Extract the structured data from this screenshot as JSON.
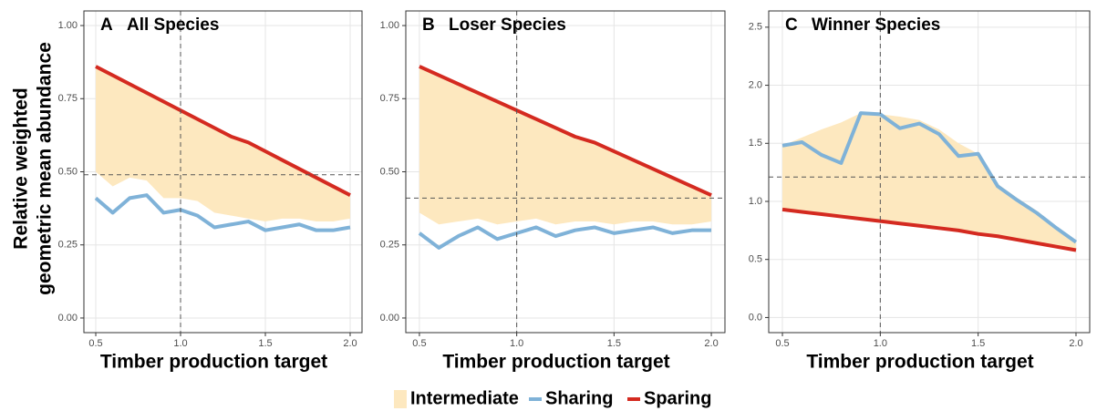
{
  "chart_data": [
    {
      "type": "line",
      "panel_label": "A",
      "title": "All Species",
      "xlabel": "Timber production target",
      "ylabel": [
        "Relative weighted",
        "geometric mean abundance"
      ],
      "x": [
        0.5,
        0.6,
        0.7,
        0.8,
        0.9,
        1.0,
        1.1,
        1.2,
        1.3,
        1.4,
        1.5,
        1.6,
        1.7,
        1.8,
        1.9,
        2.0
      ],
      "xlim": [
        0.43,
        2.07
      ],
      "xticks": [
        0.5,
        {
          "value": 1,
          "label": "1.0"
        },
        1.5,
        {
          "value": 2,
          "label": "2.0"
        }
      ],
      "ylim": [
        -0.05,
        1.05
      ],
      "yticks": [
        {
          "value": 0,
          "label": "0.00"
        },
        0.25,
        {
          "value": 0.5,
          "label": "0.50"
        },
        0.75,
        {
          "value": 1,
          "label": "1.00"
        }
      ],
      "grid": true,
      "vline": 1.0,
      "hline": 0.49,
      "series": [
        {
          "name": "Intermediate",
          "color": "#fde8bf",
          "kind": "band",
          "values": [
            0.86,
            0.83,
            0.8,
            0.77,
            0.74,
            0.71,
            0.68,
            0.65,
            0.62,
            0.6,
            0.57,
            0.54,
            0.51,
            0.48,
            0.45,
            0.42
          ],
          "lower": [
            0.5,
            0.45,
            0.48,
            0.47,
            0.41,
            0.41,
            0.4,
            0.36,
            0.35,
            0.34,
            0.33,
            0.34,
            0.34,
            0.33,
            0.33,
            0.34
          ]
        },
        {
          "name": "Sharing",
          "color": "#7fb2d8",
          "values": [
            0.41,
            0.36,
            0.41,
            0.42,
            0.36,
            0.37,
            0.35,
            0.31,
            0.32,
            0.33,
            0.3,
            0.31,
            0.32,
            0.3,
            0.3,
            0.31
          ]
        },
        {
          "name": "Sparing",
          "color": "#d42a20",
          "values": [
            0.86,
            0.83,
            0.8,
            0.77,
            0.74,
            0.71,
            0.68,
            0.65,
            0.62,
            0.6,
            0.57,
            0.54,
            0.51,
            0.48,
            0.45,
            0.42
          ]
        }
      ]
    },
    {
      "type": "line",
      "panel_label": "B",
      "title": "Loser Species",
      "xlabel": "Timber production target",
      "x": [
        0.5,
        0.6,
        0.7,
        0.8,
        0.9,
        1.0,
        1.1,
        1.2,
        1.3,
        1.4,
        1.5,
        1.6,
        1.7,
        1.8,
        1.9,
        2.0
      ],
      "xlim": [
        0.43,
        2.07
      ],
      "xticks": [
        0.5,
        {
          "value": 1,
          "label": "1.0"
        },
        1.5,
        {
          "value": 2,
          "label": "2.0"
        }
      ],
      "ylim": [
        -0.05,
        1.05
      ],
      "yticks": [
        {
          "value": 0,
          "label": "0.00"
        },
        0.25,
        {
          "value": 0.5,
          "label": "0.50"
        },
        0.75,
        {
          "value": 1,
          "label": "1.00"
        }
      ],
      "grid": true,
      "vline": 1.0,
      "hline": 0.41,
      "series": [
        {
          "name": "Intermediate",
          "color": "#fde8bf",
          "kind": "band",
          "values": [
            0.86,
            0.83,
            0.8,
            0.77,
            0.74,
            0.71,
            0.68,
            0.65,
            0.62,
            0.6,
            0.57,
            0.54,
            0.51,
            0.48,
            0.45,
            0.42
          ],
          "lower": [
            0.36,
            0.32,
            0.33,
            0.34,
            0.32,
            0.33,
            0.34,
            0.32,
            0.33,
            0.33,
            0.32,
            0.33,
            0.33,
            0.32,
            0.32,
            0.33
          ]
        },
        {
          "name": "Sharing",
          "color": "#7fb2d8",
          "values": [
            0.29,
            0.24,
            0.28,
            0.31,
            0.27,
            0.29,
            0.31,
            0.28,
            0.3,
            0.31,
            0.29,
            0.3,
            0.31,
            0.29,
            0.3,
            0.3
          ]
        },
        {
          "name": "Sparing",
          "color": "#d42a20",
          "values": [
            0.86,
            0.83,
            0.8,
            0.77,
            0.74,
            0.71,
            0.68,
            0.65,
            0.62,
            0.6,
            0.57,
            0.54,
            0.51,
            0.48,
            0.45,
            0.42
          ]
        }
      ]
    },
    {
      "type": "line",
      "panel_label": "C",
      "title": "Winner Species",
      "xlabel": "Timber production target",
      "x": [
        0.5,
        0.6,
        0.7,
        0.8,
        0.9,
        1.0,
        1.1,
        1.2,
        1.3,
        1.4,
        1.5,
        1.6,
        1.7,
        1.8,
        1.9,
        2.0
      ],
      "xlim": [
        0.43,
        2.07
      ],
      "xticks": [
        0.5,
        {
          "value": 1,
          "label": "1.0"
        },
        1.5,
        {
          "value": 2,
          "label": "2.0"
        }
      ],
      "ylim": [
        -0.13,
        2.64
      ],
      "yticks": [
        {
          "value": 0,
          "label": "0.0"
        },
        0.5,
        {
          "value": 1,
          "label": "1.0"
        },
        1.5,
        {
          "value": 2,
          "label": "2.0"
        },
        2.5
      ],
      "grid": true,
      "vline": 1.0,
      "hline": 1.21,
      "series": [
        {
          "name": "Intermediate",
          "color": "#fde8bf",
          "kind": "band",
          "values": [
            1.48,
            1.55,
            1.62,
            1.68,
            1.76,
            1.75,
            1.73,
            1.7,
            1.62,
            1.5,
            1.41,
            1.15,
            1.03,
            0.92,
            0.78,
            0.65
          ],
          "lower": [
            0.93,
            0.91,
            0.89,
            0.87,
            0.85,
            0.83,
            0.81,
            0.79,
            0.77,
            0.75,
            0.72,
            0.7,
            0.67,
            0.64,
            0.61,
            0.58
          ]
        },
        {
          "name": "Sharing",
          "color": "#7fb2d8",
          "values": [
            1.48,
            1.51,
            1.4,
            1.33,
            1.76,
            1.75,
            1.63,
            1.67,
            1.58,
            1.39,
            1.41,
            1.13,
            1.01,
            0.9,
            0.77,
            0.65
          ]
        },
        {
          "name": "Sparing",
          "color": "#d42a20",
          "values": [
            0.93,
            0.91,
            0.89,
            0.87,
            0.85,
            0.83,
            0.81,
            0.79,
            0.77,
            0.75,
            0.72,
            0.7,
            0.67,
            0.64,
            0.61,
            0.58
          ]
        }
      ]
    }
  ]
}
